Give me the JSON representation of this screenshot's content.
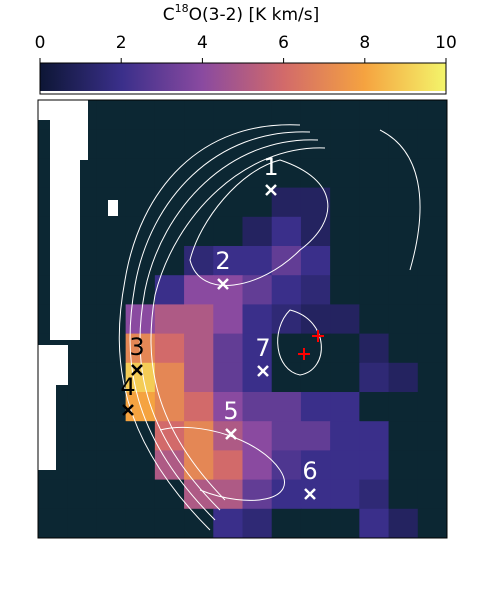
{
  "chart_data": {
    "type": "heatmap",
    "colorbar_label": {
      "main": "C",
      "sup": "18",
      "rest": "O(3-2) [K km/s]"
    },
    "clim": [
      0,
      10
    ],
    "cticks": [
      0,
      2,
      4,
      6,
      8,
      10
    ],
    "values": [
      [
        0,
        0,
        0,
        0,
        0,
        0,
        0,
        0,
        0,
        0,
        0,
        0,
        0,
        0
      ],
      [
        0,
        0,
        0,
        0,
        0,
        0,
        0,
        0,
        0,
        0,
        0,
        0,
        0,
        0
      ],
      [
        0,
        0,
        0,
        0,
        0,
        0,
        0,
        0,
        0,
        0,
        0,
        0,
        0,
        0
      ],
      [
        0,
        0,
        0,
        0,
        0,
        0,
        0,
        0,
        1,
        1,
        0,
        0,
        0,
        0
      ],
      [
        0,
        0,
        0,
        0,
        0,
        0,
        0,
        1,
        2,
        1,
        0,
        0,
        0,
        0
      ],
      [
        0,
        0,
        0,
        0,
        0,
        1.5,
        2,
        2,
        3,
        2,
        0,
        0,
        0,
        0
      ],
      [
        0,
        0,
        0,
        0,
        2,
        4,
        4,
        3,
        2,
        1.5,
        0,
        0,
        0,
        0
      ],
      [
        0,
        0,
        0,
        4,
        5,
        5,
        4,
        2,
        1.5,
        1,
        1,
        0,
        0,
        0
      ],
      [
        0,
        0,
        0,
        7,
        6,
        5,
        3,
        2,
        0,
        0,
        0,
        1,
        0,
        0
      ],
      [
        0,
        0,
        0,
        9,
        7,
        5,
        3,
        2,
        0,
        0,
        0,
        1.5,
        1,
        0
      ],
      [
        0,
        0,
        0,
        8,
        7,
        6,
        4,
        3,
        3,
        2,
        2,
        0,
        0,
        0
      ],
      [
        0,
        0,
        0,
        0,
        6,
        7,
        5,
        4,
        3,
        3,
        2,
        2,
        0,
        0
      ],
      [
        0,
        0,
        0,
        0,
        5,
        7,
        6,
        4,
        2.5,
        2,
        2,
        2,
        0,
        0
      ],
      [
        0,
        0,
        0,
        0,
        0,
        5,
        5,
        3,
        2,
        2,
        2,
        1.5,
        0,
        0
      ],
      [
        0,
        0,
        0,
        0,
        0,
        0,
        2,
        1.5,
        0,
        0,
        0,
        2,
        1,
        0
      ]
    ],
    "markers": [
      {
        "label": "1",
        "color": "white"
      },
      {
        "label": "2",
        "color": "white"
      },
      {
        "label": "3",
        "color": "black"
      },
      {
        "label": "4",
        "color": "black"
      },
      {
        "label": "5",
        "color": "white"
      },
      {
        "label": "6",
        "color": "white"
      },
      {
        "label": "7",
        "color": "white"
      }
    ]
  }
}
